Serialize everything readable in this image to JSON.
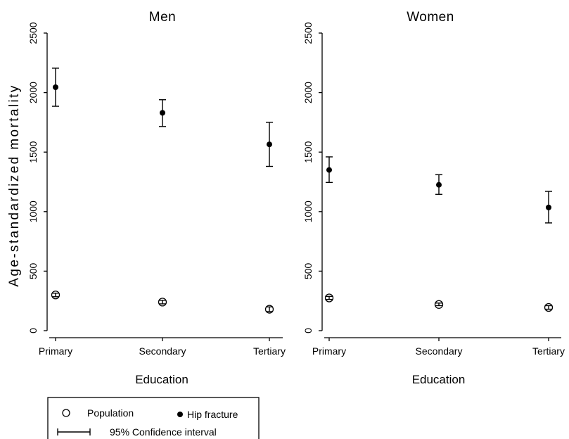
{
  "chart_data": [
    {
      "type": "scatter",
      "title": "Men",
      "xlabel": "Education",
      "ylabel": "Age-standardized mortality",
      "categories": [
        "Primary",
        "Secondary",
        "Tertiary"
      ],
      "ylim": [
        0,
        2500
      ],
      "yticks": [
        0,
        500,
        1000,
        1500,
        2000,
        2500
      ],
      "yticklabels": [
        "0",
        "500",
        "1000",
        "1500",
        "2000",
        "2500"
      ],
      "series": [
        {
          "name": "Hip fracture",
          "marker": "filled-circle",
          "values": [
            2045,
            1830,
            1565
          ],
          "ci_low": [
            1885,
            1715,
            1380
          ],
          "ci_high": [
            2205,
            1940,
            1750
          ]
        },
        {
          "name": "Population",
          "marker": "hollow-circle",
          "values": [
            300,
            240,
            180
          ],
          "ci_low": [
            285,
            225,
            160
          ],
          "ci_high": [
            315,
            255,
            200
          ]
        }
      ]
    },
    {
      "type": "scatter",
      "title": "Women",
      "xlabel": "Education",
      "ylabel": "",
      "categories": [
        "Primary",
        "Secondary",
        "Tertiary"
      ],
      "ylim": [
        0,
        2500
      ],
      "yticks": [
        0,
        500,
        1000,
        1500,
        2000,
        2500
      ],
      "yticklabels": [
        "0",
        "500",
        "1000",
        "1500",
        "2000",
        "2500"
      ],
      "series": [
        {
          "name": "Hip fracture",
          "marker": "filled-circle",
          "values": [
            1350,
            1225,
            1035
          ],
          "ci_low": [
            1245,
            1145,
            905
          ],
          "ci_high": [
            1460,
            1310,
            1170
          ]
        },
        {
          "name": "Population",
          "marker": "hollow-circle",
          "values": [
            275,
            220,
            195
          ],
          "ci_low": [
            262,
            210,
            180
          ],
          "ci_high": [
            288,
            232,
            210
          ]
        }
      ]
    }
  ],
  "legend": {
    "population_label": "Population",
    "hip_fracture_label": "Hip fracture",
    "ci_label": "95% Confidence interval",
    "placement": "bottom-left"
  }
}
